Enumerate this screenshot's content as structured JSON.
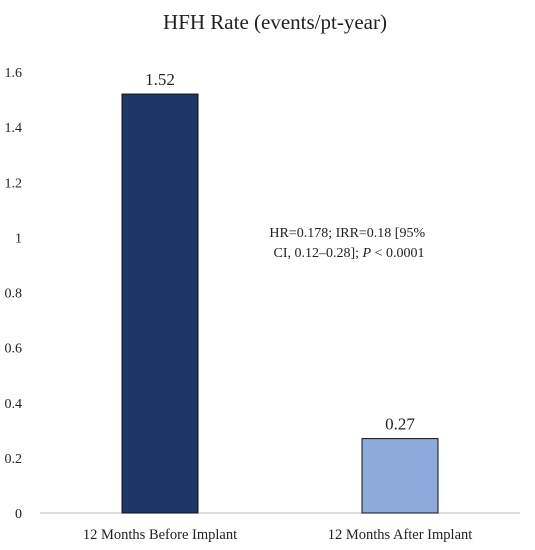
{
  "chart_data": {
    "type": "bar",
    "title": "HFH Rate (events/pt-year)",
    "categories": [
      "12 Months Before Implant",
      "12 Months After Implant"
    ],
    "values": [
      1.52,
      0.27
    ],
    "data_labels": [
      "1.52",
      "0.27"
    ],
    "bar_colors": [
      "#1f3766",
      "#8eaadc"
    ],
    "ylim": [
      0,
      1.6
    ],
    "yticks": [
      0,
      0.2,
      0.4,
      0.6,
      0.8,
      1,
      1.2,
      1.4,
      1.6
    ],
    "ytick_labels": [
      "0",
      "0.2",
      "0.4",
      "0.6",
      "0.8",
      "1",
      "1.2",
      "1.4",
      "1.6"
    ],
    "xlabel": "",
    "ylabel": "",
    "grid": false,
    "legend": "none",
    "annotation": {
      "line1": "HR=0.178; IRR=0.18 [95%",
      "line2_prefix": "CI, 0.12–0.28];",
      "line2_p": "P",
      "line2_suffix": "< 0.0001"
    }
  }
}
